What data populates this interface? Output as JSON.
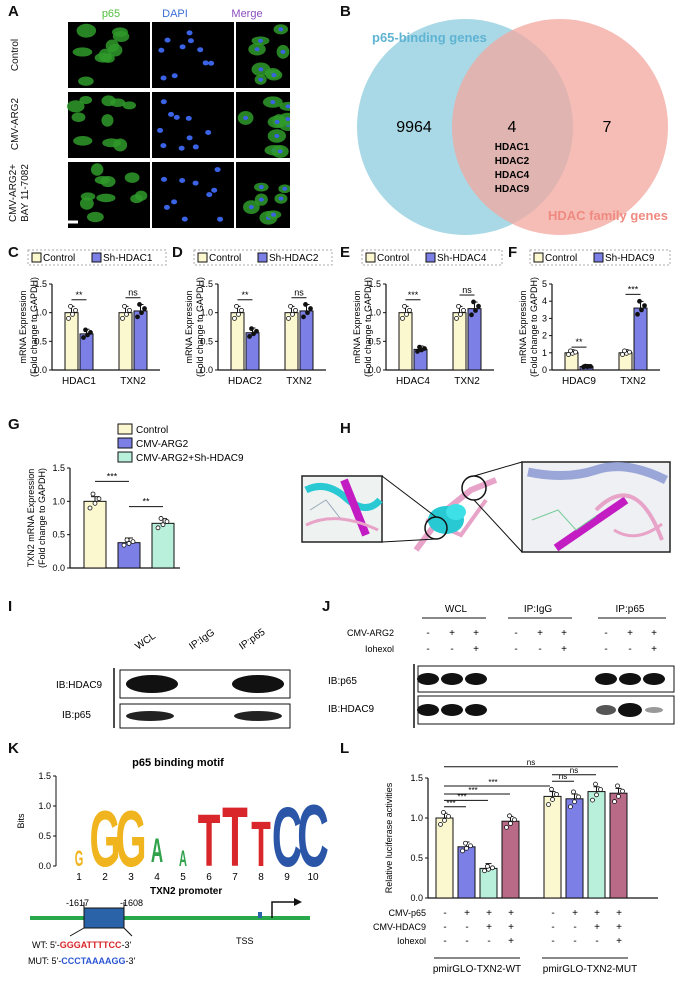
{
  "panel_labels": [
    "A",
    "B",
    "C",
    "D",
    "E",
    "F",
    "G",
    "H",
    "I",
    "J",
    "K",
    "L"
  ],
  "panelA": {
    "col_titles": [
      "p65",
      "DAPI",
      "Merge"
    ],
    "row_labels": [
      "Control",
      "CMV-ARG2",
      "CMV-ARG2+",
      "BAY 11-7082"
    ],
    "colors": {
      "p65": "#4fbf3a",
      "dapi": "#3b6fd6",
      "merge": "#8a4fbf"
    }
  },
  "panelB": {
    "set1": "p65-binding genes",
    "set2": "HDAC family genes",
    "only1": "9964",
    "both": "4",
    "only2": "7",
    "genes": [
      "HDAC1",
      "HDAC2",
      "HDAC4",
      "HDAC9"
    ],
    "colors": {
      "set1": "#a9d9e6",
      "set2": "#f3a79e",
      "set1_text": "#5fb3d3",
      "set2_text": "#ef8a80"
    }
  },
  "chart_data": [
    {
      "panel": "C",
      "type": "bar",
      "ylabel": "mRNA Expression\n(Fold change to GAPDH)",
      "ylim": [
        0,
        1.5
      ],
      "yticks": [
        "0.0",
        "0.5",
        "1.0",
        "1.5"
      ],
      "categories": [
        "HDAC1",
        "TXN2"
      ],
      "series": [
        {
          "name": "Control",
          "values": [
            1.0,
            1.0
          ]
        },
        {
          "name": "Sh-HDAC1",
          "values": [
            0.63,
            1.03
          ]
        }
      ],
      "sig": [
        "**",
        "ns"
      ]
    },
    {
      "panel": "D",
      "type": "bar",
      "ylabel": "mRNA Expression\n(Fold change to GAPDH)",
      "ylim": [
        0,
        1.5
      ],
      "yticks": [
        "0.0",
        "0.5",
        "1.0",
        "1.5"
      ],
      "categories": [
        "HDAC2",
        "TXN2"
      ],
      "series": [
        {
          "name": "Control",
          "values": [
            1.0,
            1.0
          ]
        },
        {
          "name": "Sh-HDAC2",
          "values": [
            0.65,
            1.03
          ]
        }
      ],
      "sig": [
        "**",
        "ns"
      ]
    },
    {
      "panel": "E",
      "type": "bar",
      "ylabel": "mRNA Expression\n(Fold change to GAPDH)",
      "ylim": [
        0,
        1.5
      ],
      "yticks": [
        "0.0",
        "0.5",
        "1.0",
        "1.5"
      ],
      "categories": [
        "HDAC4",
        "TXN2"
      ],
      "series": [
        {
          "name": "Control",
          "values": [
            1.0,
            1.0
          ]
        },
        {
          "name": "Sh-HDAC4",
          "values": [
            0.36,
            1.07
          ]
        }
      ],
      "sig": [
        "***",
        "ns"
      ]
    },
    {
      "panel": "F",
      "type": "bar",
      "ylabel": "mRNA Expression\n(Fold change to GAPDH)",
      "ylim": [
        0,
        5
      ],
      "yticks": [
        "0",
        "1",
        "2",
        "3",
        "4",
        "5"
      ],
      "categories": [
        "HDAC9",
        "TXN2"
      ],
      "series": [
        {
          "name": "Control",
          "values": [
            1.0,
            1.0
          ]
        },
        {
          "name": "Sh-HDAC9",
          "values": [
            0.2,
            3.6
          ]
        }
      ],
      "sig": [
        "**",
        "***"
      ]
    },
    {
      "panel": "G",
      "type": "bar",
      "ylabel": "TXN2 mRNA Expression\n(Fold change to GAPDH)",
      "ylim": [
        0,
        1.5
      ],
      "yticks": [
        "0.0",
        "0.5",
        "1.0",
        "1.5"
      ],
      "categories": [
        "Control",
        "CMV-ARG2",
        "CMV-ARG2+Sh-HDAC9"
      ],
      "values": [
        1.0,
        0.38,
        0.67
      ],
      "sig": [
        "***",
        "**"
      ]
    },
    {
      "panel": "K",
      "type": "bar",
      "title": "p65 binding motif",
      "ylabel": "Bits",
      "yticks": [
        "0.0",
        "0.5",
        "1.0",
        "1.5"
      ],
      "positions": [
        "1",
        "2",
        "3",
        "4",
        "5",
        "6",
        "7",
        "8",
        "9",
        "10"
      ],
      "letters": [
        "G",
        "G",
        "G",
        "A",
        "A",
        "T",
        "T",
        "T",
        "C",
        "C"
      ]
    },
    {
      "panel": "L",
      "type": "bar",
      "ylabel": "Relative luciferase activities",
      "ylim": [
        0,
        1.5
      ],
      "yticks": [
        "0.0",
        "0.5",
        "1.0",
        "1.5"
      ],
      "groups": [
        "pmirGLO-TXN2-WT",
        "pmirGLO-TXN2-MUT"
      ],
      "values": [
        [
          1.0,
          0.64,
          0.37,
          0.96
        ],
        [
          1.27,
          1.24,
          1.33,
          1.31
        ]
      ],
      "rows": [
        {
          "label": "CMV-p65",
          "marks": [
            "-",
            "+",
            "+",
            "+",
            "-",
            "+",
            "+",
            "+"
          ]
        },
        {
          "label": "CMV-HDAC9",
          "marks": [
            "-",
            "-",
            "+",
            "+",
            "-",
            "-",
            "+",
            "+"
          ]
        },
        {
          "label": "Iohexol",
          "marks": [
            "-",
            "-",
            "-",
            "+",
            "-",
            "-",
            "-",
            "+"
          ]
        }
      ],
      "sig": [
        "***",
        "***",
        "***",
        "***",
        "ns",
        "ns",
        "ns"
      ]
    }
  ],
  "legend_names": {
    "control": "Control",
    "cmv_arg2": "CMV-ARG2",
    "cmv_arg2_sh": "CMV-ARG2+Sh-HDAC9"
  },
  "colors": {
    "control": "#fbf7cf",
    "treat": "#7b7fe6",
    "teal": "#b8f0dc",
    "mauve": "#b86a86",
    "pink": "#e8a4c8",
    "cyan": "#29c9d4",
    "magenta": "#c21cc2"
  },
  "panelI": {
    "lanes": [
      "WCL",
      "IP:IgG",
      "IP:p65"
    ],
    "rows": [
      "IB:HDAC9",
      "IB:p65"
    ]
  },
  "panelJ": {
    "lanes": [
      "WCL",
      "IP:IgG",
      "IP:p65"
    ],
    "treatments": [
      {
        "label": "CMV-ARG2",
        "marks": [
          "-",
          "+",
          "+",
          "-",
          "+",
          "+",
          "-",
          "+",
          "+"
        ]
      },
      {
        "label": "Iohexol",
        "marks": [
          "-",
          "-",
          "+",
          "-",
          "-",
          "+",
          "-",
          "-",
          "+"
        ]
      }
    ],
    "rows": [
      "IB:p65",
      "IB:HDAC9"
    ]
  },
  "panelK": {
    "promoter": "TXN2 promoter",
    "pos1": "-1617",
    "pos2": "-1608",
    "tss": "TSS",
    "wt_prefix": "WT: 5'-",
    "wt_seq": "GGGATTTTCC",
    "wt_suffix": "-3'",
    "mut_prefix": "MUT: 5'-",
    "mut_seq": "CCCTAAAAGG",
    "mut_suffix": "-3'"
  }
}
